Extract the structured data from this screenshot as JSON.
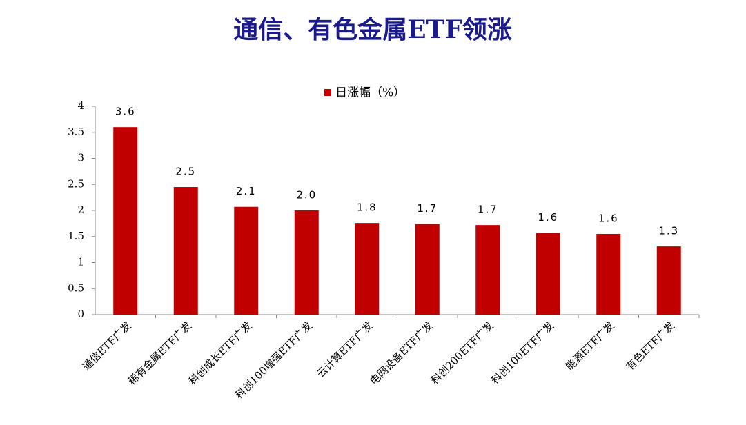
{
  "chart_data": {
    "type": "bar",
    "title": "通信、有色金属ETF领涨",
    "categories": [
      "通信ETF广发",
      "稀有金属ETF广发",
      "科创成长ETF广发",
      "科创100增强ETF广发",
      "云计算ETF广发",
      "电网设备ETF广发",
      "科创200ETF广发",
      "科创100ETF广发",
      "能源ETF广发",
      "有色ETF广发"
    ],
    "series": [
      {
        "name": "日涨幅（%）",
        "color": "#c00000",
        "values": [
          3.6,
          2.45,
          2.07,
          2.0,
          1.76,
          1.74,
          1.72,
          1.57,
          1.55,
          1.31
        ],
        "value_labels": [
          "3.6",
          "2.5",
          "2.1",
          "2.0",
          "1.8",
          "1.7",
          "1.7",
          "1.6",
          "1.6",
          "1.3"
        ]
      }
    ],
    "ylim": [
      0,
      4
    ],
    "yticks": [
      0,
      0.5,
      1,
      1.5,
      2,
      2.5,
      3,
      3.5,
      4
    ],
    "legend": "top"
  }
}
